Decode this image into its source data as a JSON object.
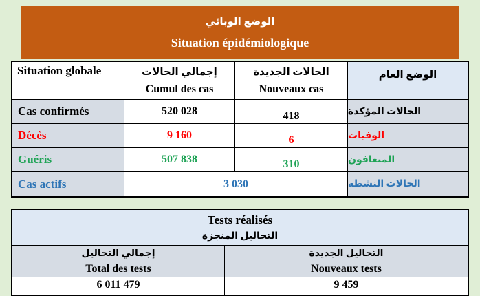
{
  "banner": {
    "title_ar": "الوضع الوبائي",
    "title_fr": "Situation épidémiologique"
  },
  "epidemic_table": {
    "header": {
      "situation_globale": "Situation globale",
      "cumul_ar": "إجمالي الحالات",
      "cumul_fr": "Cumul des cas",
      "nouveaux_ar": "الحالات الجديدة",
      "nouveaux_fr": "Nouveaux cas",
      "etat_general_ar": "الوضع العام"
    },
    "rows": [
      {
        "label_fr": "Cas confirmés",
        "cumul": "520 028",
        "nouveaux": "418",
        "label_ar": "الحالات المؤكدة",
        "color": "#000000"
      },
      {
        "label_fr": "Décès",
        "cumul": "9 160",
        "nouveaux": "6",
        "label_ar": "الوفيات",
        "color": "#FF0000"
      },
      {
        "label_fr": "Guéris",
        "cumul": "507 838",
        "nouveaux": "310",
        "label_ar": "المتعافون",
        "color": "#1FA356"
      },
      {
        "label_fr": "Cas actifs",
        "merged_value": "3 030",
        "label_ar": "الحالات النشطة",
        "color": "#2E75B6"
      }
    ]
  },
  "tests_table": {
    "title_fr": "Tests réalisés",
    "title_ar": "التحاليل المنجزة",
    "total": {
      "header_ar": "إجمالي التحاليل",
      "header_fr": "Total des tests",
      "value": "6 011 479"
    },
    "new": {
      "header_ar": "التحاليل الجديدة",
      "header_fr": "Nouveaux tests",
      "value": "9 459"
    }
  },
  "colors": {
    "page_background": "#E0EED6",
    "banner_background": "#C35C12",
    "label_cell_background": "#D6DCE4",
    "header_cell_background": "#DEE8F4",
    "confirmed_text": "#000000",
    "deaths_text": "#FF0000",
    "recovered_text": "#1FA356",
    "active_text": "#2E75B6"
  }
}
